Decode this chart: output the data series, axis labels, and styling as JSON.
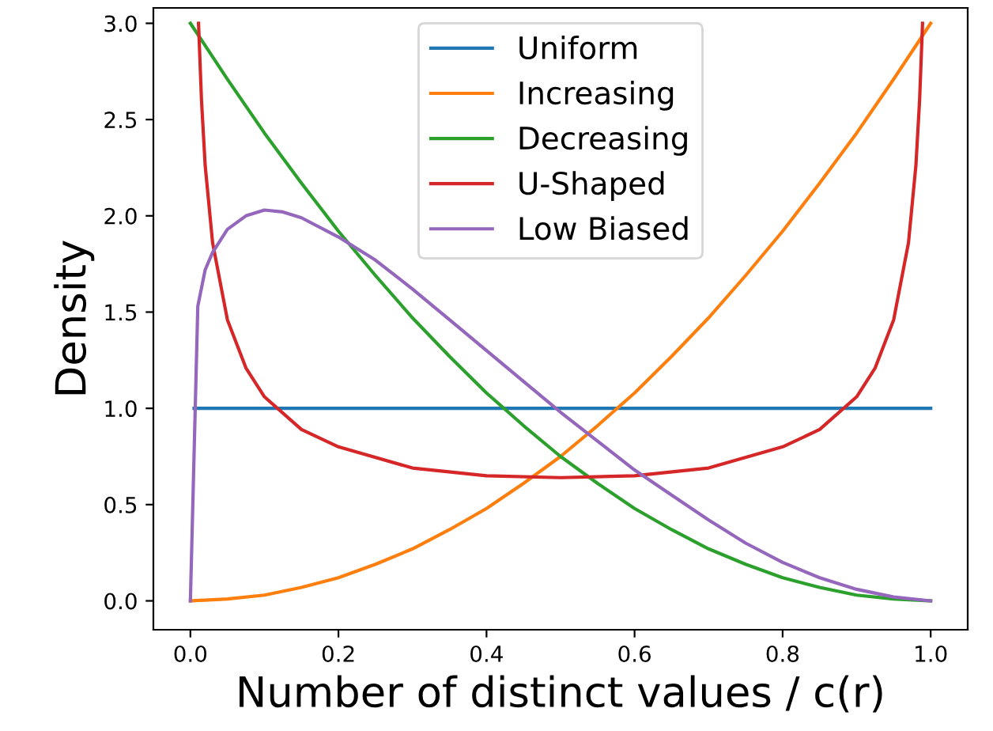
{
  "chart_data": {
    "type": "line",
    "xlabel": "Number of distinct values / c(r)",
    "ylabel": "Density",
    "xlim": [
      -0.05,
      1.05
    ],
    "ylim": [
      -0.15,
      3.08
    ],
    "xticks": [
      {
        "value": 0,
        "label": "0.0"
      },
      {
        "value": 0.2,
        "label": "0.2"
      },
      {
        "value": 0.4,
        "label": "0.4"
      },
      {
        "value": 0.6,
        "label": "0.6"
      },
      {
        "value": 0.8,
        "label": "0.8"
      },
      {
        "value": 1,
        "label": "1.0"
      }
    ],
    "yticks": [
      {
        "value": 0,
        "label": "0.0"
      },
      {
        "value": 0.5,
        "label": "0.5"
      },
      {
        "value": 1,
        "label": "1.0"
      },
      {
        "value": 1.5,
        "label": "1.5"
      },
      {
        "value": 2,
        "label": "2.0"
      },
      {
        "value": 2.5,
        "label": "2.5"
      },
      {
        "value": 3,
        "label": "3.0"
      }
    ],
    "grid": false,
    "legend": "top",
    "marker": "none",
    "line_style": "solid",
    "series": [
      {
        "name": "Uniform",
        "color": "#1f77b4",
        "x": [
          0.005,
          1.0
        ],
        "values": [
          1.0,
          1.0
        ]
      },
      {
        "name": "Increasing",
        "color": "#ff7f0e",
        "x": [
          0,
          0.05,
          0.1,
          0.15,
          0.2,
          0.25,
          0.3,
          0.35,
          0.4,
          0.45,
          0.5,
          0.55,
          0.6,
          0.65,
          0.7,
          0.75,
          0.8,
          0.85,
          0.9,
          0.95,
          1.0
        ],
        "values": [
          0,
          0.01,
          0.03,
          0.07,
          0.12,
          0.19,
          0.27,
          0.37,
          0.48,
          0.61,
          0.75,
          0.91,
          1.08,
          1.27,
          1.47,
          1.69,
          1.92,
          2.17,
          2.43,
          2.71,
          3.0
        ]
      },
      {
        "name": "Decreasing",
        "color": "#2ca02c",
        "x": [
          0,
          0.05,
          0.1,
          0.15,
          0.2,
          0.25,
          0.3,
          0.35,
          0.4,
          0.45,
          0.5,
          0.55,
          0.6,
          0.65,
          0.7,
          0.75,
          0.8,
          0.85,
          0.9,
          0.95,
          1.0
        ],
        "values": [
          3.0,
          2.71,
          2.43,
          2.17,
          1.92,
          1.69,
          1.47,
          1.27,
          1.08,
          0.91,
          0.75,
          0.61,
          0.48,
          0.37,
          0.27,
          0.19,
          0.12,
          0.07,
          0.03,
          0.01,
          0
        ]
      },
      {
        "name": "U-Shaped",
        "color": "#d62728",
        "x": [
          0.011,
          0.015,
          0.02,
          0.03,
          0.05,
          0.075,
          0.1,
          0.15,
          0.2,
          0.3,
          0.4,
          0.5,
          0.6,
          0.7,
          0.8,
          0.85,
          0.9,
          0.925,
          0.95,
          0.97,
          0.98,
          0.985,
          0.989
        ],
        "values": [
          3.0,
          2.6,
          2.26,
          1.86,
          1.46,
          1.21,
          1.06,
          0.89,
          0.8,
          0.69,
          0.65,
          0.64,
          0.65,
          0.69,
          0.8,
          0.89,
          1.06,
          1.21,
          1.46,
          1.86,
          2.26,
          2.6,
          3.0
        ]
      },
      {
        "name": "Low Biased",
        "color": "#9467bd",
        "x": [
          0,
          0.01,
          0.02,
          0.03,
          0.05,
          0.075,
          0.1,
          0.125,
          0.15,
          0.2,
          0.25,
          0.3,
          0.35,
          0.4,
          0.45,
          0.5,
          0.55,
          0.6,
          0.65,
          0.7,
          0.75,
          0.8,
          0.85,
          0.9,
          0.95,
          1.0
        ],
        "values": [
          0,
          1.53,
          1.72,
          1.81,
          1.93,
          2.0,
          2.03,
          2.02,
          1.99,
          1.89,
          1.77,
          1.62,
          1.46,
          1.3,
          1.14,
          0.98,
          0.83,
          0.68,
          0.55,
          0.42,
          0.3,
          0.2,
          0.12,
          0.06,
          0.02,
          0
        ]
      }
    ]
  }
}
